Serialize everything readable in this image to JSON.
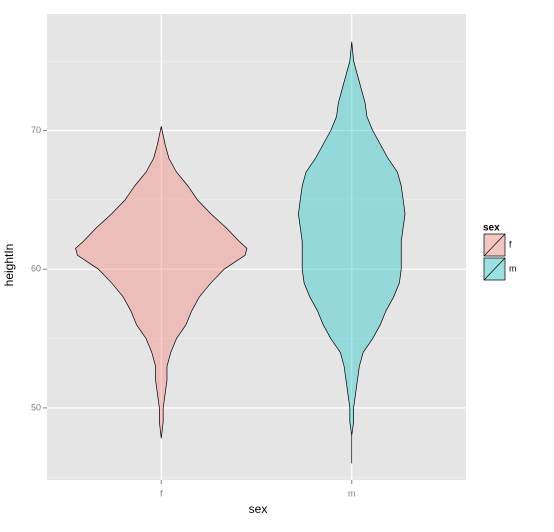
{
  "chart_data": {
    "type": "violin",
    "x_label": "sex",
    "y_label": "heightIn",
    "categories": [
      "f",
      "m"
    ],
    "legend_title": "sex",
    "legend_position": "right",
    "grid": true,
    "ylim": [
      44.8,
      78.4
    ],
    "yticks": [
      50,
      60,
      70
    ],
    "yminorticks": [
      45,
      55,
      65,
      75
    ],
    "series": [
      {
        "name": "f",
        "color": "#f8766d",
        "y": [
          70.3,
          69,
          68,
          67,
          66,
          65,
          64,
          63,
          62,
          61.5,
          61,
          60,
          59,
          58,
          57,
          56,
          55,
          54,
          53,
          52,
          51,
          50,
          49,
          47.8
        ],
        "width": [
          0,
          0.02,
          0.04,
          0.08,
          0.14,
          0.19,
          0.26,
          0.34,
          0.41,
          0.45,
          0.44,
          0.33,
          0.26,
          0.2,
          0.16,
          0.13,
          0.08,
          0.05,
          0.03,
          0.03,
          0.02,
          0.01,
          0.01,
          0
        ]
      },
      {
        "name": "m",
        "color": "#00bfc4",
        "y": [
          76.4,
          75,
          74,
          73,
          72,
          71,
          70,
          69,
          68,
          67,
          66,
          65,
          64,
          63,
          62,
          61,
          60,
          59,
          58,
          57,
          56,
          55,
          54,
          53,
          52,
          51,
          50,
          49,
          48,
          46
        ],
        "width": [
          0,
          0.01,
          0.03,
          0.05,
          0.07,
          0.08,
          0.11,
          0.15,
          0.19,
          0.24,
          0.26,
          0.27,
          0.28,
          0.27,
          0.26,
          0.26,
          0.26,
          0.25,
          0.22,
          0.18,
          0.15,
          0.11,
          0.06,
          0.04,
          0.03,
          0.02,
          0.01,
          0.01,
          0,
          0
        ]
      }
    ]
  }
}
